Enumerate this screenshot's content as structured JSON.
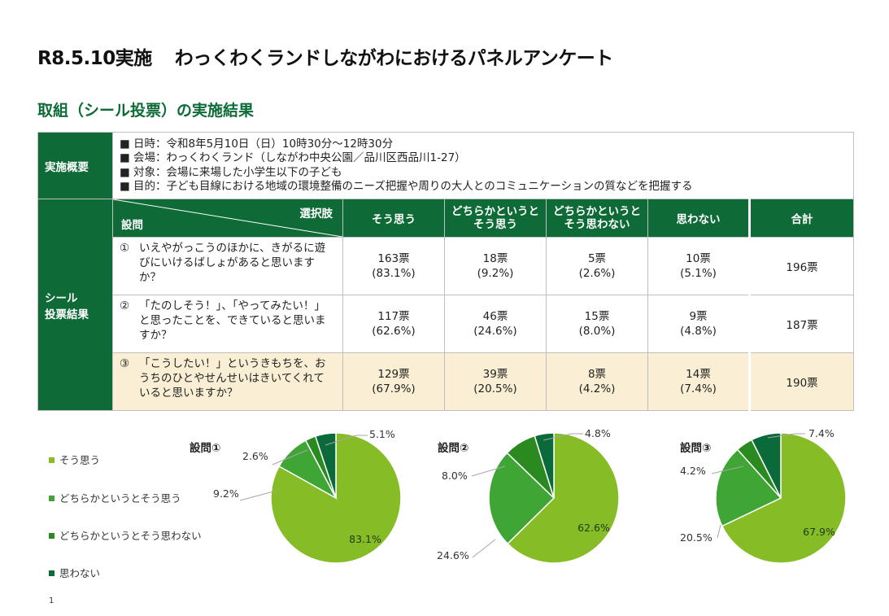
{
  "header": {
    "title_date": "R8.5.10実施",
    "title_main": "わっくわくランドしながわにおけるパネルアンケート",
    "subtitle": "取組（シール投票）の実施結果"
  },
  "overview": {
    "label": "実施概要",
    "lines": [
      "■ 日時：令和8年5月10日（日）10時30分～12時30分",
      "■ 会場：わっくわくランド（しながわ中央公園／品川区西品川1-27）",
      "■ 対象：会場に来場した小学生以下の子ども",
      "■ 目的：子ども目線における地域の環境整備のニーズ把握や周りの大人とのコミュニケーションの質などを把握する"
    ]
  },
  "results_table": {
    "side_label_1": "シール",
    "side_label_2": "投票結果",
    "corner_top": "選択肢",
    "corner_bottom": "設問",
    "columns": [
      {
        "line1": "そう思う",
        "line2": ""
      },
      {
        "line1": "どちらかというと",
        "line2": "そう思う"
      },
      {
        "line1": "どちらかというと",
        "line2": "そう思わない"
      },
      {
        "line1": "思わない",
        "line2": ""
      }
    ],
    "total_label": "合計",
    "rows": [
      {
        "num": "①",
        "text": "いえやがっこうのほかに、きがるに遊びにいけるばしょがあると思いますか？",
        "cells": [
          [
            "163票",
            "(83.1%)"
          ],
          [
            "18票",
            "(9.2%)"
          ],
          [
            "5票",
            "(2.6%)"
          ],
          [
            "10票",
            "(5.1%)"
          ]
        ],
        "total": "196票"
      },
      {
        "num": "②",
        "text": "「たのしそう！」、「やってみたい！」と思ったことを、できていると思いますか？",
        "cells": [
          [
            "117票",
            "(62.6%)"
          ],
          [
            "46票",
            "(24.6%)"
          ],
          [
            "15票",
            "(8.0%)"
          ],
          [
            "9票",
            "(4.8%)"
          ]
        ],
        "total": "187票"
      },
      {
        "num": "③",
        "text": "「こうしたい！」というきもちを、おうちのひとやせんせいはきいてくれていると思いますか？",
        "cells": [
          [
            "129票",
            "(67.9%)"
          ],
          [
            "39票",
            "(20.5%)"
          ],
          [
            "8票",
            "(4.2%)"
          ],
          [
            "14票",
            "(7.4%)"
          ]
        ],
        "total": "190票"
      }
    ]
  },
  "colors": {
    "dark_green": "#0e6a36",
    "highlight_row": "#faefd4",
    "slice_1": "#86bc25",
    "slice_2": "#3fa535",
    "slice_3": "#2b8a1f",
    "slice_4": "#0b6a3a"
  },
  "chart_data": [
    {
      "type": "pie",
      "title": "設問①",
      "categories": [
        "そう思う",
        "どちらかというとそう思う",
        "どちらかというとそう思わない",
        "思わない"
      ],
      "values": [
        83.1,
        9.2,
        2.6,
        5.1
      ],
      "labels": [
        "83.1%",
        "9.2%",
        "2.6%",
        "5.1%"
      ],
      "legend": "left"
    },
    {
      "type": "pie",
      "title": "設問②",
      "categories": [
        "そう思う",
        "どちらかというとそう思う",
        "どちらかというとそう思わない",
        "思わない"
      ],
      "values": [
        62.6,
        24.6,
        8.0,
        4.8
      ],
      "labels": [
        "62.6%",
        "24.6%",
        "8.0%",
        "4.8%"
      ]
    },
    {
      "type": "pie",
      "title": "設問③",
      "categories": [
        "そう思う",
        "どちらかというとそう思う",
        "どちらかというとそう思わない",
        "思わない"
      ],
      "values": [
        67.9,
        20.5,
        4.2,
        7.4
      ],
      "labels": [
        "67.9%",
        "20.5%",
        "4.2%",
        "7.4%"
      ]
    }
  ],
  "legend": {
    "items": [
      "そう思う",
      "どちらかというとそう思う",
      "どちらかというとそう思わない",
      "思わない"
    ]
  },
  "page_number": "1"
}
